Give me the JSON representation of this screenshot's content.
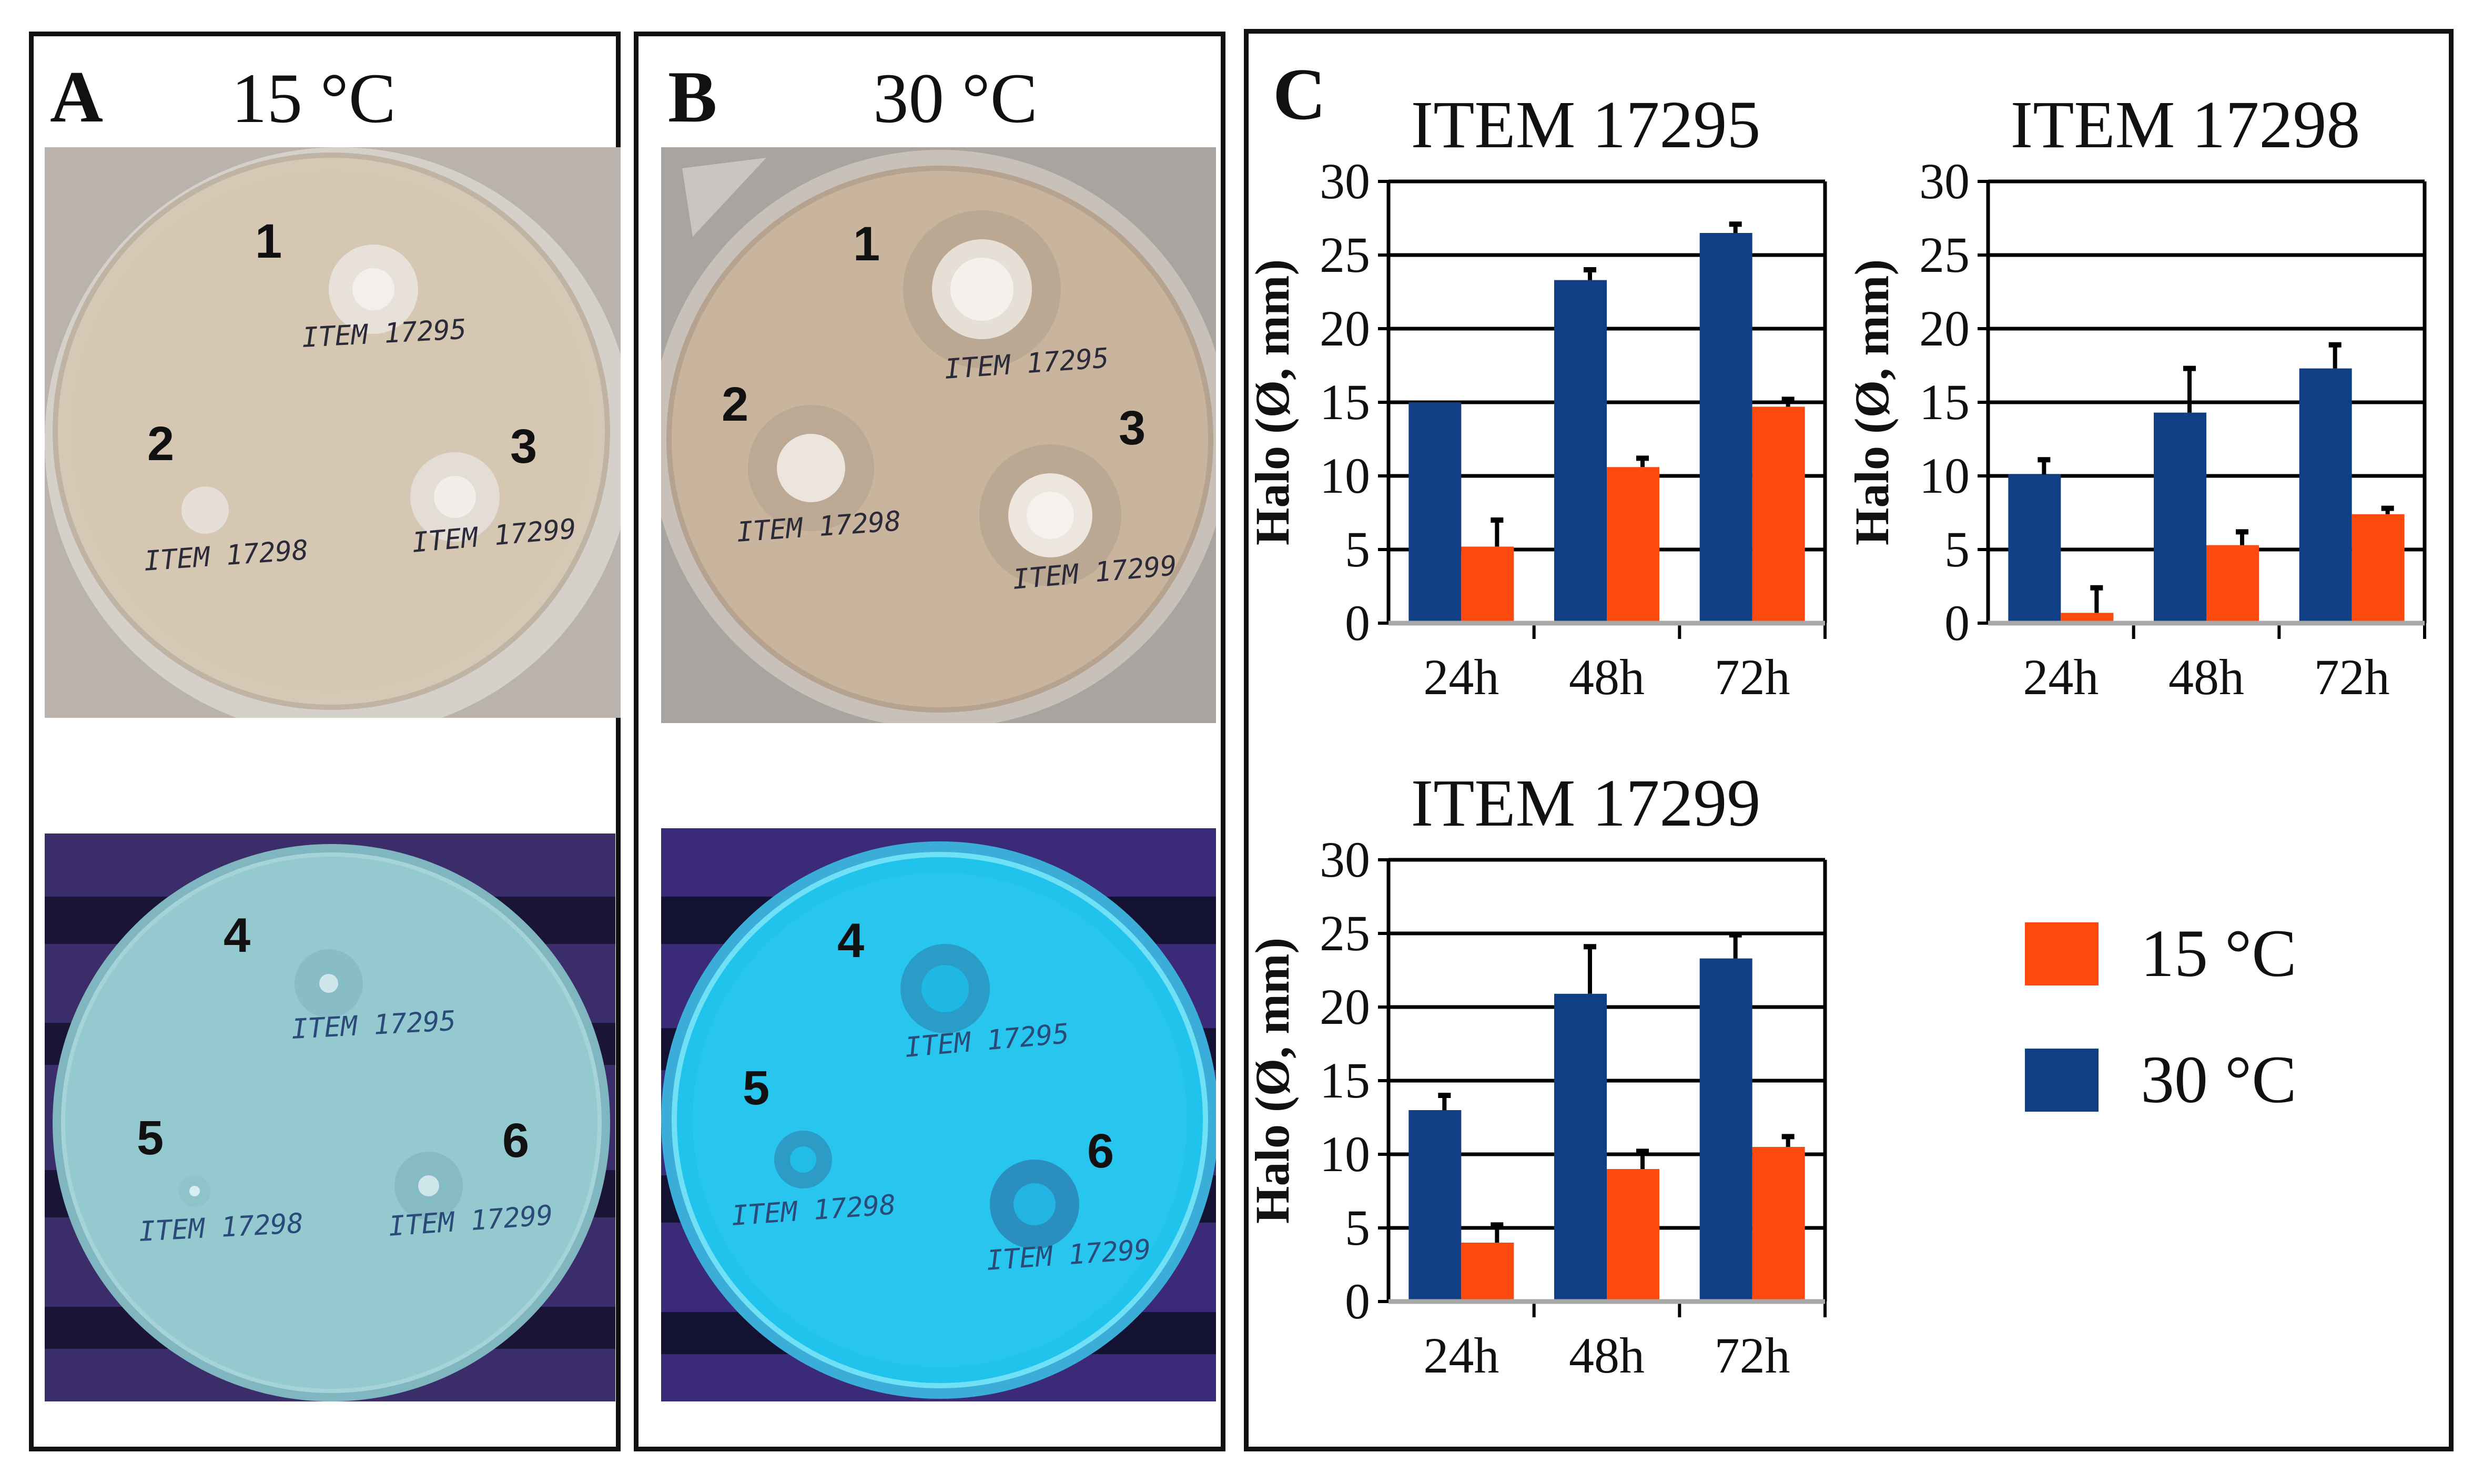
{
  "panels": {
    "A": {
      "letter": "A",
      "temperature": "15 °C"
    },
    "B": {
      "letter": "B",
      "temperature": "30 °C"
    },
    "C": {
      "letter": "C"
    }
  },
  "plate_labels": {
    "A_top": {
      "n1": "1",
      "n2": "2",
      "n3": "3",
      "s1": "ITEM 17295",
      "s2": "ITEM 17298",
      "s3": "ITEM 17299"
    },
    "A_bottom": {
      "n1": "4",
      "n2": "5",
      "n3": "6",
      "s1": "ITEM 17295",
      "s2": "ITEM 17298",
      "s3": "ITEM 17299"
    },
    "B_top": {
      "n1": "1",
      "n2": "2",
      "n3": "3",
      "s1": "ITEM 17295",
      "s2": "ITEM 17298",
      "s3": "ITEM 17299"
    },
    "B_bottom": {
      "n1": "4",
      "n2": "5",
      "n3": "6",
      "s1": "ITEM 17295",
      "s2": "ITEM 17298",
      "s3": "ITEM 17299"
    }
  },
  "legend": {
    "items": [
      {
        "label": "15 °C",
        "color": "#fc4a0e"
      },
      {
        "label": "30 °C",
        "color": "#103f86"
      }
    ]
  },
  "chart_data": [
    {
      "type": "bar",
      "title": "ITEM 17295",
      "categories": [
        "24h",
        "48h",
        "72h"
      ],
      "ylabel": "Halo (Ø, mm)",
      "ylim": [
        0,
        30
      ],
      "yticks": [
        "0",
        "5",
        "10",
        "15",
        "20",
        "25",
        "30"
      ],
      "series": [
        {
          "name": "30 °C",
          "color": "#103f86",
          "values": [
            15.0,
            23.3,
            26.5
          ],
          "errors": [
            0.0,
            0.7,
            0.6
          ]
        },
        {
          "name": "15 °C",
          "color": "#fc4a0e",
          "values": [
            5.2,
            10.6,
            14.7
          ],
          "errors": [
            1.8,
            0.6,
            0.5
          ]
        }
      ]
    },
    {
      "type": "bar",
      "title": "ITEM 17298",
      "categories": [
        "24h",
        "48h",
        "72h"
      ],
      "ylabel": "Halo (Ø, mm)",
      "ylim": [
        0,
        30
      ],
      "yticks": [
        "0",
        "5",
        "10",
        "15",
        "20",
        "25",
        "30"
      ],
      "series": [
        {
          "name": "30 °C",
          "color": "#103f86",
          "values": [
            10.1,
            14.3,
            17.3
          ],
          "errors": [
            1.0,
            3.0,
            1.6
          ]
        },
        {
          "name": "15 °C",
          "color": "#fc4a0e",
          "values": [
            0.7,
            5.3,
            7.4
          ],
          "errors": [
            1.7,
            0.9,
            0.4
          ]
        }
      ]
    },
    {
      "type": "bar",
      "title": "ITEM 17299",
      "categories": [
        "24h",
        "48h",
        "72h"
      ],
      "ylabel": "Halo (Ø, mm)",
      "ylim": [
        0,
        30
      ],
      "yticks": [
        "0",
        "5",
        "10",
        "15",
        "20",
        "25",
        "30"
      ],
      "series": [
        {
          "name": "30 °C",
          "color": "#103f86",
          "values": [
            13.0,
            20.9,
            23.3
          ],
          "errors": [
            1.0,
            3.2,
            1.6
          ]
        },
        {
          "name": "15 °C",
          "color": "#fc4a0e",
          "values": [
            4.0,
            9.0,
            10.5
          ],
          "errors": [
            1.2,
            1.2,
            0.7
          ]
        }
      ]
    }
  ]
}
